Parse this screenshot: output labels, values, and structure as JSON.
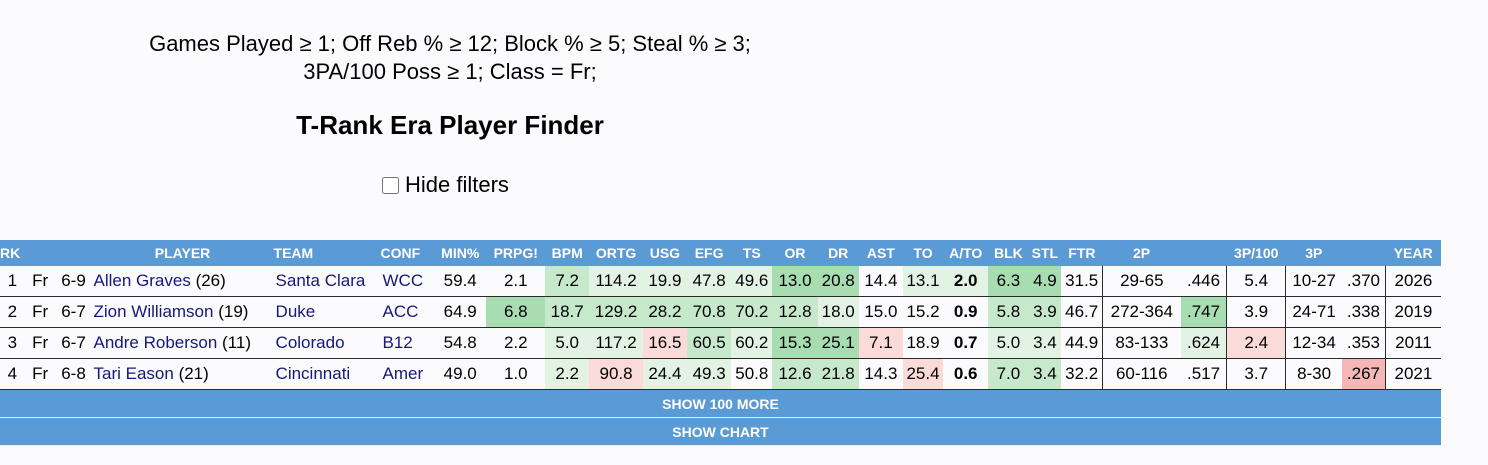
{
  "filters": {
    "line1": "Games Played ≥ 1; Off Reb % ≥ 12; Block % ≥ 5; Steal % ≥ 3;",
    "line2": "3PA/100 Poss ≥ 1; Class = Fr;"
  },
  "title": "T-Rank Era Player Finder",
  "hide_filters_label": "Hide filters",
  "colors": {
    "header_bg": "#5b9bd5",
    "good_strong": "#a8dcb1",
    "good_mid": "#c6e8cb",
    "good_light": "#e2f3e4",
    "bad_light": "#fbdada",
    "bad_mid": "#f4b6b6",
    "link": "#17177a"
  },
  "columns": [
    "RK",
    "",
    "",
    "PLAYER",
    "TEAM",
    "CONF",
    "MIN%",
    "PRPG!",
    "BPM",
    "ORTG",
    "USG",
    "EFG",
    "TS",
    "OR",
    "DR",
    "AST",
    "TO",
    "A/TO",
    "BLK",
    "STL",
    "FTR",
    "2P",
    "",
    "3P/100",
    "3P",
    "",
    "YEAR"
  ],
  "rows": [
    {
      "rk": "1",
      "cls": "Fr",
      "ht": "6-9",
      "name": "Allen Graves",
      "games": "(26)",
      "team": "Santa Clara",
      "conf": "WCC",
      "min": "59.4",
      "prpg": "2.1",
      "bpm": "7.2",
      "ortg": "114.2",
      "usg": "19.9",
      "efg": "47.8",
      "ts": "49.6",
      "or": "13.0",
      "dr": "20.8",
      "ast": "14.4",
      "to": "13.1",
      "ato": "2.0",
      "blk": "6.3",
      "stl": "4.9",
      "ftr": "31.5",
      "twop": "29-65",
      "twopct": ".446",
      "tp100": "5.4",
      "threep": "10-27",
      "threepct": ".370",
      "year": "2026"
    },
    {
      "rk": "2",
      "cls": "Fr",
      "ht": "6-7",
      "name": "Zion Williamson",
      "games": "(19)",
      "team": "Duke",
      "conf": "ACC",
      "min": "64.9",
      "prpg": "6.8",
      "bpm": "18.7",
      "ortg": "129.2",
      "usg": "28.2",
      "efg": "70.8",
      "ts": "70.2",
      "or": "12.8",
      "dr": "18.0",
      "ast": "15.0",
      "to": "15.2",
      "ato": "0.9",
      "blk": "5.8",
      "stl": "3.9",
      "ftr": "46.7",
      "twop": "272-364",
      "twopct": ".747",
      "tp100": "3.9",
      "threep": "24-71",
      "threepct": ".338",
      "year": "2019"
    },
    {
      "rk": "3",
      "cls": "Fr",
      "ht": "6-7",
      "name": "Andre Roberson",
      "games": "(11)",
      "team": "Colorado",
      "conf": "B12",
      "min": "54.8",
      "prpg": "2.2",
      "bpm": "5.0",
      "ortg": "117.2",
      "usg": "16.5",
      "efg": "60.5",
      "ts": "60.2",
      "or": "15.3",
      "dr": "25.1",
      "ast": "7.1",
      "to": "18.9",
      "ato": "0.7",
      "blk": "5.0",
      "stl": "3.4",
      "ftr": "44.9",
      "twop": "83-133",
      "twopct": ".624",
      "tp100": "2.4",
      "threep": "12-34",
      "threepct": ".353",
      "year": "2011"
    },
    {
      "rk": "4",
      "cls": "Fr",
      "ht": "6-8",
      "name": "Tari Eason",
      "games": "(21)",
      "team": "Cincinnati",
      "conf": "Amer",
      "min": "49.0",
      "prpg": "1.0",
      "bpm": "2.2",
      "ortg": "90.8",
      "usg": "24.4",
      "efg": "49.3",
      "ts": "50.8",
      "or": "12.6",
      "dr": "21.8",
      "ast": "14.3",
      "to": "25.4",
      "ato": "0.6",
      "blk": "7.0",
      "stl": "3.4",
      "ftr": "32.2",
      "twop": "60-116",
      "twopct": ".517",
      "tp100": "3.7",
      "threep": "8-30",
      "threepct": ".267",
      "year": "2021"
    }
  ],
  "shades": [
    {
      "bpm": "good_mid",
      "ortg": "good_light",
      "usg": "good_light",
      "efg": "good_light",
      "ts": "good_light",
      "or": "good_strong",
      "dr": "good_strong",
      "to": "good_light",
      "ato": "good_light",
      "blk": "good_strong",
      "stl": "good_strong"
    },
    {
      "prpg": "good_strong",
      "bpm": "good_mid",
      "ortg": "good_mid",
      "usg": "good_mid",
      "efg": "good_mid",
      "ts": "good_mid",
      "or": "good_mid",
      "dr": "good_light",
      "blk": "good_mid",
      "stl": "good_mid",
      "twopct": "good_strong"
    },
    {
      "bpm": "good_light",
      "ortg": "good_light",
      "usg": "bad_light",
      "efg": "good_mid",
      "ts": "good_light",
      "or": "good_strong",
      "dr": "good_strong",
      "ast": "bad_light",
      "blk": "good_light",
      "stl": "good_light",
      "twopct": "good_light",
      "tp100": "bad_light"
    },
    {
      "bpm": "good_light",
      "ortg": "bad_light",
      "usg": "good_light",
      "efg": "good_light",
      "or": "good_mid",
      "dr": "good_mid",
      "to": "bad_light",
      "blk": "good_mid",
      "stl": "good_mid",
      "threepct": "bad_mid"
    }
  ],
  "buttons": {
    "show_more": "SHOW 100 MORE",
    "show_chart": "SHOW CHART"
  }
}
